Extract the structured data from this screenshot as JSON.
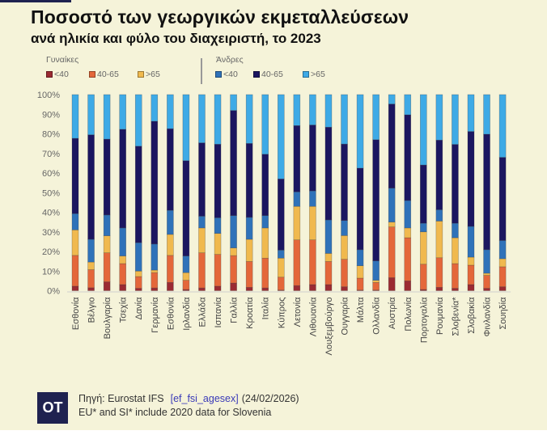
{
  "title": "Ποσοστό των γεωργικών εκμεταλλεύσεων",
  "subtitle": "ανά ηλικία και φύλο του διαχειριστή, το 2023",
  "legend": {
    "women_title": "Γυναίκες",
    "men_title": "Άνδρες",
    "women": [
      {
        "label": "<40",
        "color": "#9b2a32"
      },
      {
        "label": "40-65",
        "color": "#e4673a"
      },
      {
        "label": ">65",
        "color": "#f0b94e"
      }
    ],
    "men": [
      {
        "label": "<40",
        "color": "#2f72b9"
      },
      {
        "label": "40-65",
        "color": "#1b1660"
      },
      {
        "label": ">65",
        "color": "#3eaae6"
      }
    ]
  },
  "footer": {
    "logo": "OT",
    "source_prefix": "Πηγή: Eurostat IFS",
    "source_link": "[ef_fsi_agesex]",
    "source_date": "(24/02/2026)",
    "note": "EU*  and SI* include 2020 data for  Slovenia"
  },
  "chart_data": {
    "type": "bar",
    "stacked": true,
    "title": "Ποσοστό των γεωργικών εκμεταλλεύσεων ανά ηλικία και φύλο του διαχειριστή, το 2023",
    "xlabel": "",
    "ylabel": "",
    "ylim": [
      0,
      100
    ],
    "yticks": [
      "0%",
      "10%",
      "20%",
      "30%",
      "40%",
      "50%",
      "60%",
      "70%",
      "80%",
      "90%",
      "100%"
    ],
    "grid": false,
    "legend_position": "top-left",
    "categories": [
      "Εσθονία",
      "Βέλγιο",
      "Βουλγαρία",
      "Τσεχία",
      "Δανία",
      "Γερμανία",
      "Εσθονία",
      "Ιρλανδία",
      "Ελλάδα",
      "Ισπανία",
      "Γαλλία",
      "Κροατία",
      "Ιταλία",
      "Κύπρος",
      "Λετονία",
      "Λιθουανία",
      "Λουξεμβούργο",
      "Ουγγαρία",
      "Μάλτα",
      "Ολλανδία",
      "Αυστρία",
      "Πολωνία",
      "Πορτογαλία",
      "Ρουμανία",
      "Σλοβενία*",
      "Σλοβακία",
      "Φινλανδία",
      "Σουηδία"
    ],
    "series": [
      {
        "name": "Γυναίκες <40",
        "color": "#9b2a32",
        "values": [
          2.3,
          1.5,
          4.5,
          3.1,
          1.2,
          1.4,
          4.2,
          0.6,
          1.4,
          2.3,
          3.9,
          1.7,
          1.4,
          0.3,
          2.6,
          3.1,
          3.1,
          2.0,
          0.3,
          0.3,
          6.6,
          5.0,
          0.6,
          1.7,
          1.2,
          3.1,
          1.2,
          2.0
        ]
      },
      {
        "name": "Γυναίκες 40-65",
        "color": "#e4673a",
        "values": [
          15.7,
          9.2,
          14.8,
          10.7,
          6.0,
          7.8,
          13.8,
          4.7,
          17.9,
          16.2,
          14.0,
          13.2,
          15.2,
          6.6,
          23.3,
          22.8,
          11.8,
          14.0,
          6.1,
          3.9,
          25.9,
          22.0,
          12.9,
          15.1,
          12.6,
          9.9,
          6.6,
          10.2
        ]
      },
      {
        "name": "Γυναίκες >65",
        "color": "#f0b94e",
        "values": [
          13.0,
          3.9,
          8.7,
          3.9,
          2.8,
          1.3,
          10.7,
          3.9,
          12.7,
          10.7,
          3.9,
          11.3,
          15.4,
          9.7,
          17.1,
          17.1,
          4.1,
          12.1,
          6.3,
          1.1,
          2.5,
          5.0,
          16.5,
          18.7,
          13.2,
          4.1,
          1.1,
          4.1
        ]
      },
      {
        "name": "Άνδρες <40",
        "color": "#2f72b9",
        "values": [
          8.3,
          11.6,
          10.6,
          14.3,
          14.5,
          13.3,
          12.3,
          8.5,
          6.0,
          8.0,
          16.5,
          11.2,
          6.3,
          4.1,
          7.4,
          7.9,
          17.1,
          7.7,
          8.2,
          9.9,
          17.3,
          14.0,
          4.4,
          5.8,
          7.4,
          15.7,
          12.0,
          9.3
        ]
      },
      {
        "name": "Άνδρες 40-65",
        "color": "#1b1660",
        "values": [
          38.4,
          53.3,
          38.7,
          50.3,
          49.2,
          62.6,
          41.6,
          48.6,
          37.4,
          37.5,
          53.6,
          37.7,
          31.3,
          36.3,
          33.8,
          33.6,
          47.3,
          39.0,
          41.6,
          61.8,
          42.9,
          43.7,
          29.7,
          35.5,
          40.2,
          48.4,
          58.9,
          42.4
        ]
      },
      {
        "name": "Άνδρες >65",
        "color": "#3eaae6",
        "values": [
          22.3,
          20.5,
          22.7,
          17.7,
          26.3,
          13.6,
          17.4,
          33.7,
          24.6,
          25.3,
          8.1,
          24.9,
          30.4,
          43.0,
          15.8,
          15.5,
          16.6,
          25.2,
          37.5,
          23.0,
          4.8,
          10.3,
          35.9,
          23.2,
          25.4,
          18.8,
          20.2,
          32.0
        ]
      }
    ]
  }
}
